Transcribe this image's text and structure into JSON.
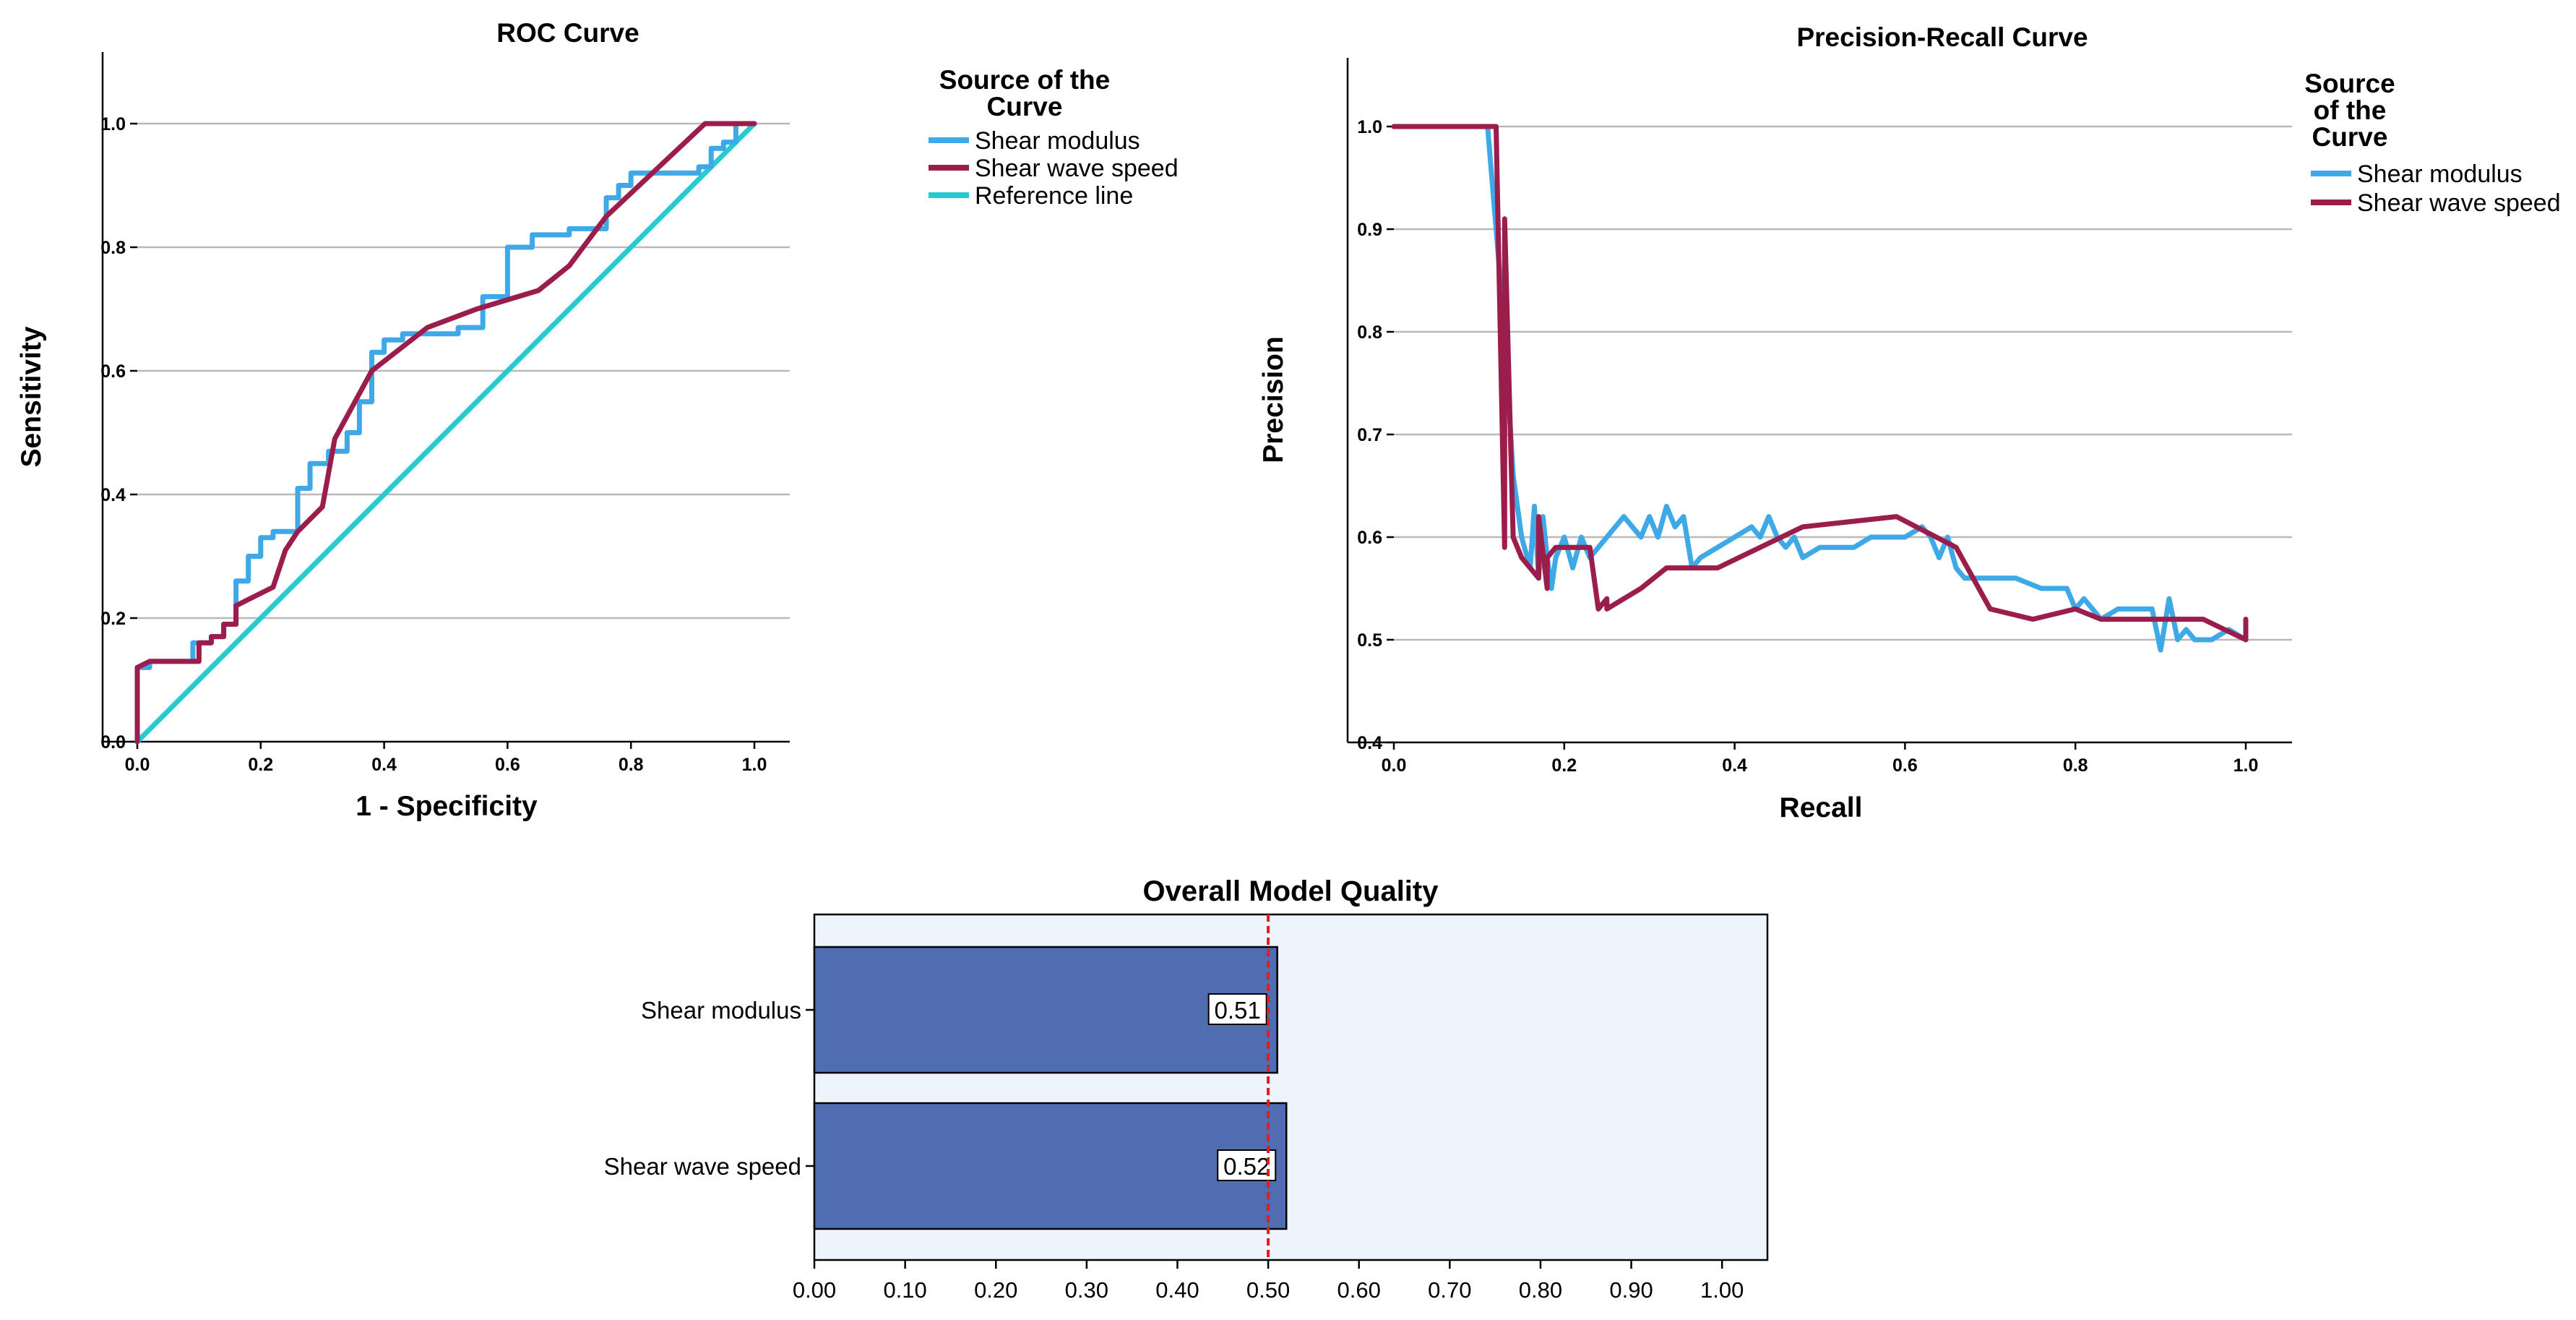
{
  "chart_data": [
    {
      "type": "line",
      "title": "ROC Curve",
      "xlabel": "1 - Specificity",
      "ylabel": "Sensitivity",
      "xlim": [
        0,
        1
      ],
      "ylim": [
        0,
        1
      ],
      "xticks": [
        "0.0",
        "0.2",
        "0.4",
        "0.6",
        "0.8",
        "1.0"
      ],
      "yticks": [
        "0.0",
        "0.2",
        "0.4",
        "0.6",
        "0.8",
        "1.0"
      ],
      "grid": "horizontal",
      "legend": {
        "title_lines": [
          "Source of the",
          "Curve"
        ],
        "placement": "right"
      },
      "series": [
        {
          "name": "Shear modulus",
          "color": "#3ea9e6",
          "x": [
            0.0,
            0.0,
            0.02,
            0.02,
            0.09,
            0.09,
            0.12,
            0.12,
            0.14,
            0.14,
            0.16,
            0.16,
            0.18,
            0.18,
            0.2,
            0.2,
            0.22,
            0.22,
            0.26,
            0.26,
            0.28,
            0.28,
            0.31,
            0.31,
            0.34,
            0.34,
            0.36,
            0.36,
            0.38,
            0.38,
            0.4,
            0.4,
            0.43,
            0.43,
            0.52,
            0.52,
            0.56,
            0.56,
            0.6,
            0.6,
            0.64,
            0.64,
            0.7,
            0.7,
            0.76,
            0.76,
            0.78,
            0.78,
            0.8,
            0.8,
            0.91,
            0.91,
            0.93,
            0.93,
            0.95,
            0.95,
            0.97,
            0.97,
            1.0
          ],
          "y": [
            0.0,
            0.12,
            0.12,
            0.13,
            0.13,
            0.16,
            0.16,
            0.17,
            0.17,
            0.19,
            0.19,
            0.26,
            0.26,
            0.3,
            0.3,
            0.33,
            0.33,
            0.34,
            0.34,
            0.41,
            0.41,
            0.45,
            0.45,
            0.47,
            0.47,
            0.5,
            0.5,
            0.55,
            0.55,
            0.63,
            0.63,
            0.65,
            0.65,
            0.66,
            0.66,
            0.67,
            0.67,
            0.72,
            0.72,
            0.8,
            0.8,
            0.82,
            0.82,
            0.83,
            0.83,
            0.88,
            0.88,
            0.9,
            0.9,
            0.92,
            0.92,
            0.93,
            0.93,
            0.96,
            0.96,
            0.97,
            0.97,
            1.0,
            1.0
          ]
        },
        {
          "name": "Shear wave speed",
          "color": "#9b1d4c",
          "x": [
            0.0,
            0.0,
            0.02,
            0.1,
            0.1,
            0.12,
            0.12,
            0.14,
            0.14,
            0.16,
            0.16,
            0.2,
            0.22,
            0.24,
            0.26,
            0.3,
            0.32,
            0.38,
            0.47,
            0.55,
            0.65,
            0.7,
            0.76,
            0.92,
            1.0
          ],
          "y": [
            0.0,
            0.12,
            0.13,
            0.13,
            0.16,
            0.16,
            0.17,
            0.17,
            0.19,
            0.19,
            0.22,
            0.24,
            0.25,
            0.31,
            0.34,
            0.38,
            0.49,
            0.6,
            0.67,
            0.7,
            0.73,
            0.77,
            0.85,
            1.0,
            1.0
          ]
        },
        {
          "name": "Reference line",
          "color": "#25cbcf",
          "x": [
            0.0,
            1.0
          ],
          "y": [
            0.0,
            1.0
          ]
        }
      ]
    },
    {
      "type": "line",
      "title": "Precision-Recall Curve",
      "xlabel": "Recall",
      "ylabel": "Precision",
      "xlim": [
        0,
        1
      ],
      "ylim": [
        0.4,
        1.0
      ],
      "xticks": [
        "0.0",
        "0.2",
        "0.4",
        "0.6",
        "0.8",
        "1.0"
      ],
      "yticks": [
        "0.4",
        "0.5",
        "0.6",
        "0.7",
        "0.8",
        "0.9",
        "1.0"
      ],
      "grid": "horizontal",
      "legend": {
        "title_lines": [
          "Source",
          "of the",
          "Curve"
        ],
        "placement": "right"
      },
      "series": [
        {
          "name": "Shear modulus",
          "color": "#3ea9e6",
          "x": [
            0.0,
            0.11,
            0.12,
            0.13,
            0.14,
            0.15,
            0.16,
            0.165,
            0.17,
            0.175,
            0.18,
            0.185,
            0.19,
            0.2,
            0.21,
            0.22,
            0.23,
            0.25,
            0.27,
            0.29,
            0.3,
            0.31,
            0.32,
            0.33,
            0.34,
            0.35,
            0.36,
            0.38,
            0.4,
            0.42,
            0.43,
            0.44,
            0.45,
            0.46,
            0.47,
            0.48,
            0.5,
            0.52,
            0.54,
            0.56,
            0.58,
            0.6,
            0.62,
            0.63,
            0.64,
            0.65,
            0.66,
            0.67,
            0.7,
            0.73,
            0.76,
            0.79,
            0.8,
            0.81,
            0.83,
            0.85,
            0.87,
            0.89,
            0.9,
            0.91,
            0.92,
            0.93,
            0.94,
            0.96,
            0.98,
            1.0
          ],
          "y": [
            1.0,
            1.0,
            0.9,
            0.8,
            0.66,
            0.6,
            0.57,
            0.63,
            0.56,
            0.62,
            0.58,
            0.55,
            0.58,
            0.6,
            0.57,
            0.6,
            0.58,
            0.6,
            0.62,
            0.6,
            0.62,
            0.6,
            0.63,
            0.61,
            0.62,
            0.57,
            0.58,
            0.59,
            0.6,
            0.61,
            0.6,
            0.62,
            0.6,
            0.59,
            0.6,
            0.58,
            0.59,
            0.59,
            0.59,
            0.6,
            0.6,
            0.6,
            0.61,
            0.6,
            0.58,
            0.6,
            0.57,
            0.56,
            0.56,
            0.56,
            0.55,
            0.55,
            0.53,
            0.54,
            0.52,
            0.53,
            0.53,
            0.53,
            0.49,
            0.54,
            0.5,
            0.51,
            0.5,
            0.5,
            0.51,
            0.5
          ]
        },
        {
          "name": "Shear wave speed",
          "color": "#9b1d4c",
          "x": [
            0.0,
            0.12,
            0.13,
            0.13,
            0.14,
            0.15,
            0.17,
            0.17,
            0.18,
            0.18,
            0.19,
            0.23,
            0.24,
            0.25,
            0.25,
            0.29,
            0.32,
            0.38,
            0.48,
            0.59,
            0.66,
            0.7,
            0.75,
            0.8,
            0.83,
            0.95,
            1.0,
            1.0
          ],
          "y": [
            1.0,
            1.0,
            0.59,
            0.91,
            0.6,
            0.58,
            0.56,
            0.62,
            0.55,
            0.58,
            0.59,
            0.59,
            0.53,
            0.54,
            0.53,
            0.55,
            0.57,
            0.57,
            0.61,
            0.62,
            0.59,
            0.53,
            0.52,
            0.53,
            0.52,
            0.52,
            0.5,
            0.52
          ]
        }
      ]
    },
    {
      "type": "bar",
      "orientation": "horizontal",
      "title": "Overall Model Quality",
      "categories": [
        "Shear modulus",
        "Shear wave speed"
      ],
      "values": [
        0.51,
        0.52
      ],
      "value_labels": [
        "0.51",
        "0.52"
      ],
      "xlim": [
        0,
        1.05
      ],
      "xticks": [
        "0.00",
        "0.10",
        "0.20",
        "0.30",
        "0.40",
        "0.50",
        "0.60",
        "0.70",
        "0.80",
        "0.90",
        "1.00"
      ],
      "reference_line": 0.5,
      "colors": {
        "bar": "#4f6db0",
        "background": "#eef4fc",
        "reference": "#e41a1c"
      }
    }
  ]
}
